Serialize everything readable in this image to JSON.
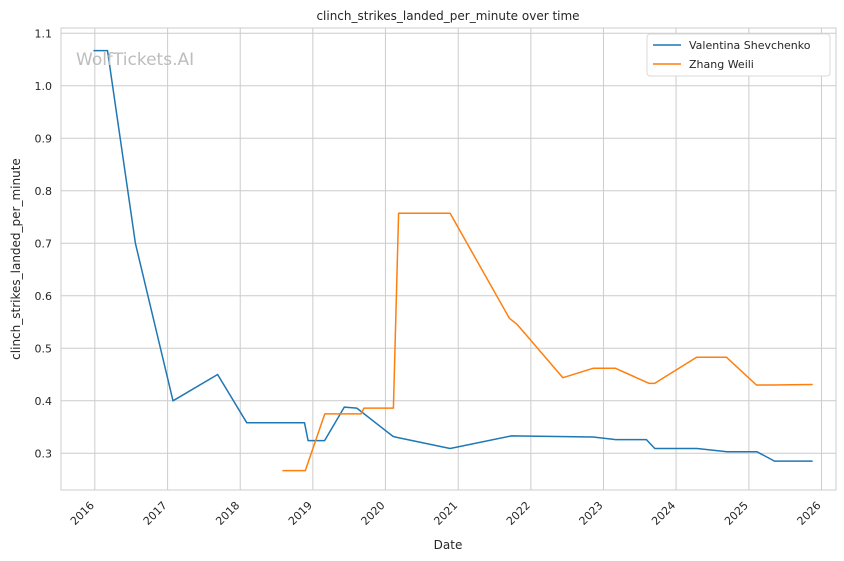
{
  "chart_data": {
    "type": "line",
    "title": "clinch_strikes_landed_per_minute over time",
    "xlabel": "Date",
    "ylabel": "clinch_strikes_landed_per_minute",
    "watermark": "WolfTickets.AI",
    "x_ticks": [
      "2016",
      "2017",
      "2018",
      "2019",
      "2020",
      "2021",
      "2022",
      "2023",
      "2024",
      "2025",
      "2026"
    ],
    "y_ticks": [
      "0.3",
      "0.4",
      "0.5",
      "0.6",
      "0.7",
      "0.8",
      "0.9",
      "1.0",
      "1.1"
    ],
    "xlim": [
      "2015-07-15",
      "2026-03-15"
    ],
    "ylim": [
      0.23,
      1.11
    ],
    "grid": true,
    "legend_position": "top-right",
    "series": [
      {
        "name": "Valentina Shevchenko",
        "color": "#1f77b4",
        "points": [
          [
            "2015-12-28",
            1.067
          ],
          [
            "2016-03-05",
            1.067
          ],
          [
            "2016-07-23",
            0.7
          ],
          [
            "2017-01-28",
            0.4
          ],
          [
            "2017-09-09",
            0.45
          ],
          [
            "2018-02-03",
            0.358
          ],
          [
            "2018-11-20",
            0.358
          ],
          [
            "2018-12-08",
            0.324
          ],
          [
            "2019-03-01",
            0.324
          ],
          [
            "2019-06-08",
            0.388
          ],
          [
            "2019-08-10",
            0.386
          ],
          [
            "2020-02-08",
            0.332
          ],
          [
            "2020-03-01",
            0.33
          ],
          [
            "2020-11-21",
            0.309
          ],
          [
            "2021-09-25",
            0.333
          ],
          [
            "2022-11-10",
            0.331
          ],
          [
            "2023-03-04",
            0.326
          ],
          [
            "2023-08-05",
            0.326
          ],
          [
            "2023-09-16",
            0.309
          ],
          [
            "2024-04-15",
            0.309
          ],
          [
            "2024-09-14",
            0.303
          ],
          [
            "2025-02-10",
            0.303
          ],
          [
            "2025-05-10",
            0.285
          ],
          [
            "2025-11-15",
            0.285
          ]
        ]
      },
      {
        "name": "Zhang Weili",
        "color": "#ff7f0e",
        "points": [
          [
            "2018-08-04",
            0.267
          ],
          [
            "2018-11-24",
            0.267
          ],
          [
            "2019-03-02",
            0.375
          ],
          [
            "2019-08-31",
            0.375
          ],
          [
            "2019-09-15",
            0.386
          ],
          [
            "2020-02-10",
            0.386
          ],
          [
            "2020-03-07",
            0.757
          ],
          [
            "2020-11-21",
            0.757
          ],
          [
            "2021-09-15",
            0.557
          ],
          [
            "2021-10-25",
            0.545
          ],
          [
            "2022-06-11",
            0.444
          ],
          [
            "2022-11-12",
            0.462
          ],
          [
            "2023-03-01",
            0.462
          ],
          [
            "2023-08-19",
            0.433
          ],
          [
            "2023-09-15",
            0.433
          ],
          [
            "2024-04-13",
            0.483
          ],
          [
            "2024-09-10",
            0.483
          ],
          [
            "2025-02-08",
            0.43
          ],
          [
            "2025-05-01",
            0.43
          ],
          [
            "2025-11-15",
            0.431
          ]
        ]
      }
    ]
  }
}
